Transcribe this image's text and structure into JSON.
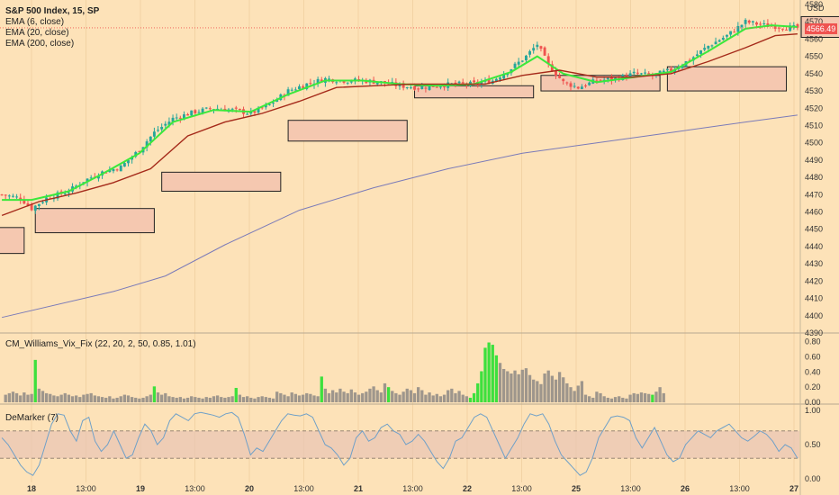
{
  "header": {
    "symbol": "S&P 500 Index, 15, SP",
    "ema6": "EMA (6, close)",
    "ema20": "EMA (20, close)",
    "ema200": "EMA (200, close)",
    "currency": "USD",
    "price_tag": "4566.49"
  },
  "indicators": {
    "vix_fix": "CM_Williams_Vix_Fix (22, 20, 2, 50, 0.85, 1.01)",
    "demarker": "DeMarker (7)"
  },
  "colors": {
    "background": "#fde2b8",
    "bull": "#26a69a",
    "bear": "#ef5350",
    "ema6": "#3be83b",
    "ema20": "#a52a1a",
    "ema200": "#7b7bb8",
    "zone_fill": "#f5c8b0",
    "vix_gray": "#9e968c",
    "vix_green": "#3de03d",
    "demarker_line": "#6fa0c8",
    "price_tag": "#ef5350"
  },
  "chart_data": [
    {
      "type": "candlestick",
      "x_ticks": [
        "18",
        "13:00",
        "19",
        "13:00",
        "20",
        "13:00",
        "21",
        "13:00",
        "22",
        "13:00",
        "25",
        "13:00",
        "26",
        "13:00",
        "27"
      ],
      "y_ticks": [
        4390,
        4400,
        4410,
        4420,
        4430,
        4440,
        4450,
        4460,
        4470,
        4480,
        4490,
        4500,
        4510,
        4520,
        4530,
        4540,
        4550,
        4560,
        4570,
        4580
      ],
      "ylim": [
        4390,
        4580
      ],
      "last_price": 4566.49,
      "close_path": [
        [
          0,
          4470
        ],
        [
          5,
          4468
        ],
        [
          8,
          4462
        ],
        [
          12,
          4468
        ],
        [
          18,
          4472
        ],
        [
          22,
          4478
        ],
        [
          27,
          4483
        ],
        [
          32,
          4486
        ],
        [
          37,
          4496
        ],
        [
          41,
          4506
        ],
        [
          46,
          4514
        ],
        [
          52,
          4518
        ],
        [
          57,
          4520
        ],
        [
          62,
          4519
        ],
        [
          67,
          4517
        ],
        [
          72,
          4522
        ],
        [
          77,
          4530
        ],
        [
          82,
          4534
        ],
        [
          87,
          4537
        ],
        [
          92,
          4536
        ],
        [
          97,
          4536
        ],
        [
          102,
          4535
        ],
        [
          107,
          4533
        ],
        [
          112,
          4532
        ],
        [
          117,
          4533
        ],
        [
          122,
          4534
        ],
        [
          127,
          4534
        ],
        [
          132,
          4536
        ],
        [
          137,
          4543
        ],
        [
          141,
          4550
        ],
        [
          144,
          4557
        ],
        [
          147,
          4545
        ],
        [
          151,
          4535
        ],
        [
          155,
          4532
        ],
        [
          160,
          4536
        ],
        [
          165,
          4537
        ],
        [
          170,
          4540
        ],
        [
          175,
          4539
        ],
        [
          180,
          4542
        ],
        [
          185,
          4548
        ],
        [
          190,
          4556
        ],
        [
          195,
          4562
        ],
        [
          200,
          4570
        ],
        [
          205,
          4568
        ],
        [
          210,
          4567
        ],
        [
          214,
          4566.49
        ]
      ],
      "series": [
        {
          "name": "EMA (6, close)",
          "points": [
            [
              0,
              4467
            ],
            [
              8,
              4467
            ],
            [
              18,
              4472
            ],
            [
              27,
              4482
            ],
            [
              37,
              4494
            ],
            [
              46,
              4512
            ],
            [
              57,
              4519
            ],
            [
              67,
              4518
            ],
            [
              77,
              4528
            ],
            [
              87,
              4536
            ],
            [
              97,
              4536
            ],
            [
              107,
              4534
            ],
            [
              117,
              4533
            ],
            [
              127,
              4534
            ],
            [
              137,
              4541
            ],
            [
              144,
              4550
            ],
            [
              151,
              4540
            ],
            [
              160,
              4535
            ],
            [
              170,
              4538
            ],
            [
              180,
              4541
            ],
            [
              190,
              4553
            ],
            [
              200,
              4566
            ],
            [
              207,
              4568
            ],
            [
              214,
              4567
            ]
          ]
        },
        {
          "name": "EMA (20, close)",
          "points": [
            [
              0,
              4458
            ],
            [
              10,
              4466
            ],
            [
              20,
              4471
            ],
            [
              30,
              4477
            ],
            [
              40,
              4485
            ],
            [
              50,
              4504
            ],
            [
              60,
              4512
            ],
            [
              70,
              4517
            ],
            [
              80,
              4524
            ],
            [
              90,
              4532
            ],
            [
              100,
              4533
            ],
            [
              110,
              4534
            ],
            [
              120,
              4534
            ],
            [
              130,
              4534
            ],
            [
              140,
              4539
            ],
            [
              150,
              4542
            ],
            [
              160,
              4538
            ],
            [
              170,
              4538
            ],
            [
              180,
              4540
            ],
            [
              190,
              4547
            ],
            [
              200,
              4555
            ],
            [
              208,
              4562
            ],
            [
              214,
              4563
            ]
          ]
        },
        {
          "name": "EMA (200, close)",
          "points": [
            [
              0,
              4399
            ],
            [
              30,
              4414
            ],
            [
              44,
              4423
            ],
            [
              60,
              4441
            ],
            [
              80,
              4461
            ],
            [
              100,
              4474
            ],
            [
              120,
              4485
            ],
            [
              140,
              4494
            ],
            [
              160,
              4500
            ],
            [
              180,
              4506
            ],
            [
              200,
              4512
            ],
            [
              214,
              4516
            ]
          ]
        }
      ],
      "zones": [
        {
          "x": [
            -1,
            6
          ],
          "y": [
            4436,
            4451
          ]
        },
        {
          "x": [
            9,
            41
          ],
          "y": [
            4448,
            4462
          ]
        },
        {
          "x": [
            43,
            75
          ],
          "y": [
            4472,
            4483
          ]
        },
        {
          "x": [
            77,
            109
          ],
          "y": [
            4501,
            4513
          ]
        },
        {
          "x": [
            111,
            143
          ],
          "y": [
            4526,
            4533
          ]
        },
        {
          "x": [
            145,
            177
          ],
          "y": [
            4530,
            4539
          ]
        },
        {
          "x": [
            179,
            211
          ],
          "y": [
            4530,
            4544
          ]
        },
        {
          "x": [
            215,
            246
          ],
          "y": [
            4561,
            4573
          ]
        }
      ]
    },
    {
      "type": "bar",
      "title": "CM_Williams_Vix_Fix (22, 20, 2, 50, 0.85, 1.01)",
      "y_ticks": [
        0.0,
        0.2,
        0.4,
        0.6,
        0.8
      ],
      "ylim": [
        0,
        0.82
      ],
      "values": [
        0.1,
        0.12,
        0.14,
        0.12,
        0.09,
        0.13,
        0.1,
        0.11,
        0.56,
        0.18,
        0.15,
        0.12,
        0.11,
        0.09,
        0.08,
        0.1,
        0.12,
        0.1,
        0.08,
        0.09,
        0.07,
        0.1,
        0.11,
        0.12,
        0.09,
        0.08,
        0.07,
        0.06,
        0.08,
        0.05,
        0.06,
        0.08,
        0.1,
        0.09,
        0.07,
        0.06,
        0.05,
        0.06,
        0.08,
        0.1,
        0.21,
        0.13,
        0.1,
        0.12,
        0.08,
        0.07,
        0.06,
        0.07,
        0.05,
        0.06,
        0.08,
        0.07,
        0.06,
        0.05,
        0.07,
        0.06,
        0.08,
        0.09,
        0.07,
        0.06,
        0.07,
        0.08,
        0.19,
        0.1,
        0.07,
        0.08,
        0.06,
        0.05,
        0.07,
        0.08,
        0.07,
        0.06,
        0.05,
        0.14,
        0.12,
        0.1,
        0.08,
        0.13,
        0.11,
        0.09,
        0.1,
        0.12,
        0.11,
        0.09,
        0.08,
        0.34,
        0.18,
        0.12,
        0.16,
        0.13,
        0.18,
        0.14,
        0.12,
        0.17,
        0.13,
        0.1,
        0.12,
        0.14,
        0.18,
        0.21,
        0.16,
        0.13,
        0.25,
        0.2,
        0.15,
        0.12,
        0.1,
        0.14,
        0.18,
        0.16,
        0.12,
        0.2,
        0.16,
        0.1,
        0.13,
        0.09,
        0.11,
        0.08,
        0.1,
        0.16,
        0.18,
        0.12,
        0.15,
        0.1,
        0.08,
        0.06,
        0.12,
        0.25,
        0.41,
        0.72,
        0.79,
        0.76,
        0.62,
        0.52,
        0.44,
        0.41,
        0.38,
        0.42,
        0.37,
        0.43,
        0.45,
        0.36,
        0.3,
        0.28,
        0.24,
        0.38,
        0.42,
        0.35,
        0.3,
        0.4,
        0.33,
        0.25,
        0.2,
        0.15,
        0.22,
        0.28,
        0.1,
        0.08,
        0.06,
        0.14,
        0.12,
        0.08,
        0.06,
        0.05,
        0.07,
        0.08,
        0.06,
        0.05,
        0.1,
        0.12,
        0.11,
        0.13,
        0.12,
        0.11,
        0.1,
        0.14,
        0.2,
        0.12
      ],
      "green_indices": [
        8,
        40,
        62,
        85,
        103,
        125,
        126,
        127,
        128,
        129,
        130,
        131,
        132,
        174
      ]
    },
    {
      "type": "line",
      "title": "DeMarker (7)",
      "y_ticks": [
        0.0,
        0.5,
        1.0
      ],
      "ylim": [
        0,
        1
      ],
      "band": [
        0.3,
        0.7
      ],
      "values": [
        0.6,
        0.5,
        0.35,
        0.2,
        0.1,
        0.05,
        0.2,
        0.5,
        0.8,
        0.95,
        0.93,
        0.7,
        0.55,
        0.85,
        0.9,
        0.55,
        0.4,
        0.5,
        0.7,
        0.5,
        0.3,
        0.35,
        0.6,
        0.8,
        0.7,
        0.5,
        0.6,
        0.85,
        0.95,
        0.9,
        0.85,
        0.95,
        0.97,
        0.95,
        0.93,
        0.9,
        0.95,
        0.97,
        0.9,
        0.65,
        0.35,
        0.45,
        0.4,
        0.55,
        0.7,
        0.85,
        0.95,
        0.93,
        0.92,
        0.95,
        0.9,
        0.7,
        0.5,
        0.45,
        0.35,
        0.2,
        0.3,
        0.6,
        0.7,
        0.55,
        0.6,
        0.75,
        0.8,
        0.7,
        0.65,
        0.5,
        0.55,
        0.65,
        0.55,
        0.4,
        0.25,
        0.15,
        0.3,
        0.55,
        0.6,
        0.75,
        0.9,
        0.95,
        0.9,
        0.7,
        0.5,
        0.3,
        0.45,
        0.6,
        0.8,
        0.95,
        0.92,
        0.95,
        0.8,
        0.55,
        0.35,
        0.25,
        0.15,
        0.05,
        0.1,
        0.3,
        0.6,
        0.75,
        0.9,
        0.92,
        0.9,
        0.85,
        0.6,
        0.45,
        0.6,
        0.75,
        0.55,
        0.35,
        0.25,
        0.3,
        0.5,
        0.6,
        0.7,
        0.65,
        0.6,
        0.7,
        0.75,
        0.8,
        0.7,
        0.6,
        0.55,
        0.62,
        0.7,
        0.65,
        0.55,
        0.4,
        0.5,
        0.45,
        0.3
      ]
    }
  ]
}
